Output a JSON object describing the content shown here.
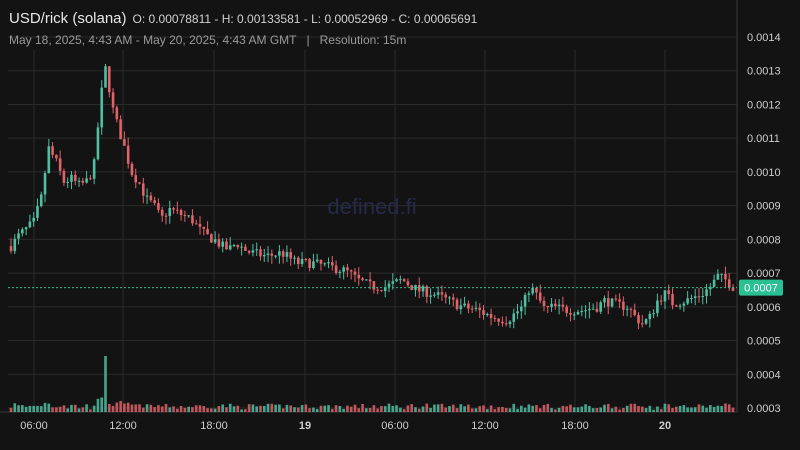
{
  "header": {
    "symbol": "USD/rick (solana)",
    "ohlc": "O: 0.00078811 - H: 0.00133581 - L: 0.00052969 - C: 0.00065691",
    "range": "May 18, 2025, 4:43 AM - May 20, 2025, 4:43 AM GMT",
    "separator": "|",
    "resolution": "Resolution: 15m"
  },
  "watermark": "defined.fi",
  "colors": {
    "background": "#131313",
    "grid": "#2b2b2b",
    "up": "#4fbfa2",
    "down": "#e0626a",
    "last_price": "#2bbf94"
  },
  "chart_data": {
    "type": "candlestick",
    "title": "USD/rick (solana)",
    "resolution": "15m",
    "x_tick_labels": [
      "06:00",
      "12:00",
      "18:00",
      "19",
      "06:00",
      "12:00",
      "18:00",
      "20"
    ],
    "y_tick_labels": [
      "0.0014",
      "0.0013",
      "0.0012",
      "0.0011",
      "0.0010",
      "0.0009",
      "0.0008",
      "0.0007",
      "0.0006",
      "0.0005",
      "0.0004",
      "0.0003"
    ],
    "ylim": [
      0.00029,
      0.00146
    ],
    "last_price_label": "0.0007",
    "last_price": 0.00065691,
    "open": 0.00078811,
    "high": 0.00133581,
    "low": 0.00052969,
    "close": 0.00065691,
    "grid": true,
    "price_path": [
      [
        0,
        0.00078
      ],
      [
        0.5,
        0.00081
      ],
      [
        1,
        0.00083
      ],
      [
        1.5,
        0.00085
      ],
      [
        2,
        0.00092
      ],
      [
        2.5,
        0.00107
      ],
      [
        3,
        0.00103
      ],
      [
        3.5,
        0.00097
      ],
      [
        4,
        0.00098
      ],
      [
        4.5,
        0.00096
      ],
      [
        5,
        0.00097
      ],
      [
        5.5,
        0.00101
      ],
      [
        6,
        0.00123
      ],
      [
        6.3,
        0.00131
      ],
      [
        6.8,
        0.00118
      ],
      [
        7.2,
        0.00112
      ],
      [
        7.5,
        0.00108
      ],
      [
        8,
        0.001
      ],
      [
        8.5,
        0.00097
      ],
      [
        9,
        0.00092
      ],
      [
        9.5,
        0.0009
      ],
      [
        10,
        0.00086
      ],
      [
        10.5,
        0.00089
      ],
      [
        11,
        0.00088
      ],
      [
        11.5,
        0.00087
      ],
      [
        12,
        0.00086
      ],
      [
        12.5,
        0.00083
      ],
      [
        13,
        0.00081
      ],
      [
        13.5,
        0.0008
      ],
      [
        14,
        0.00078
      ],
      [
        14.5,
        0.00077
      ],
      [
        15,
        0.00079
      ],
      [
        15.5,
        0.00077
      ],
      [
        16,
        0.00076
      ],
      [
        17,
        0.00075
      ],
      [
        18,
        0.00076
      ],
      [
        19,
        0.00073
      ],
      [
        20,
        0.00073
      ],
      [
        21,
        0.00072
      ],
      [
        22,
        0.00071
      ],
      [
        22.5,
        0.0007
      ],
      [
        23,
        0.00068
      ],
      [
        24,
        0.00066
      ],
      [
        25,
        0.00066
      ],
      [
        26,
        0.00068
      ],
      [
        27,
        0.00065
      ],
      [
        28,
        0.00064
      ],
      [
        29,
        0.00062
      ],
      [
        30,
        0.0006
      ],
      [
        31,
        0.00059
      ],
      [
        32,
        0.00057
      ],
      [
        33,
        0.00056
      ],
      [
        33.5,
        0.00058
      ],
      [
        34,
        0.0006
      ],
      [
        34.5,
        0.00066
      ],
      [
        35,
        0.00063
      ],
      [
        35.5,
        0.00059
      ],
      [
        36,
        0.0006
      ],
      [
        37,
        0.00059
      ],
      [
        38,
        0.00059
      ],
      [
        39,
        0.0006
      ],
      [
        39.5,
        0.00062
      ],
      [
        40,
        0.00061
      ],
      [
        41,
        0.0006
      ],
      [
        41.5,
        0.00057
      ],
      [
        42,
        0.00055
      ],
      [
        42.5,
        0.00057
      ],
      [
        43,
        0.00062
      ],
      [
        43.5,
        0.00064
      ],
      [
        44,
        0.00061
      ],
      [
        45,
        0.00062
      ],
      [
        46,
        0.00064
      ],
      [
        46.5,
        0.00066
      ],
      [
        47,
        0.00069
      ],
      [
        47.5,
        0.00068
      ],
      [
        48,
        0.00066
      ]
    ]
  }
}
